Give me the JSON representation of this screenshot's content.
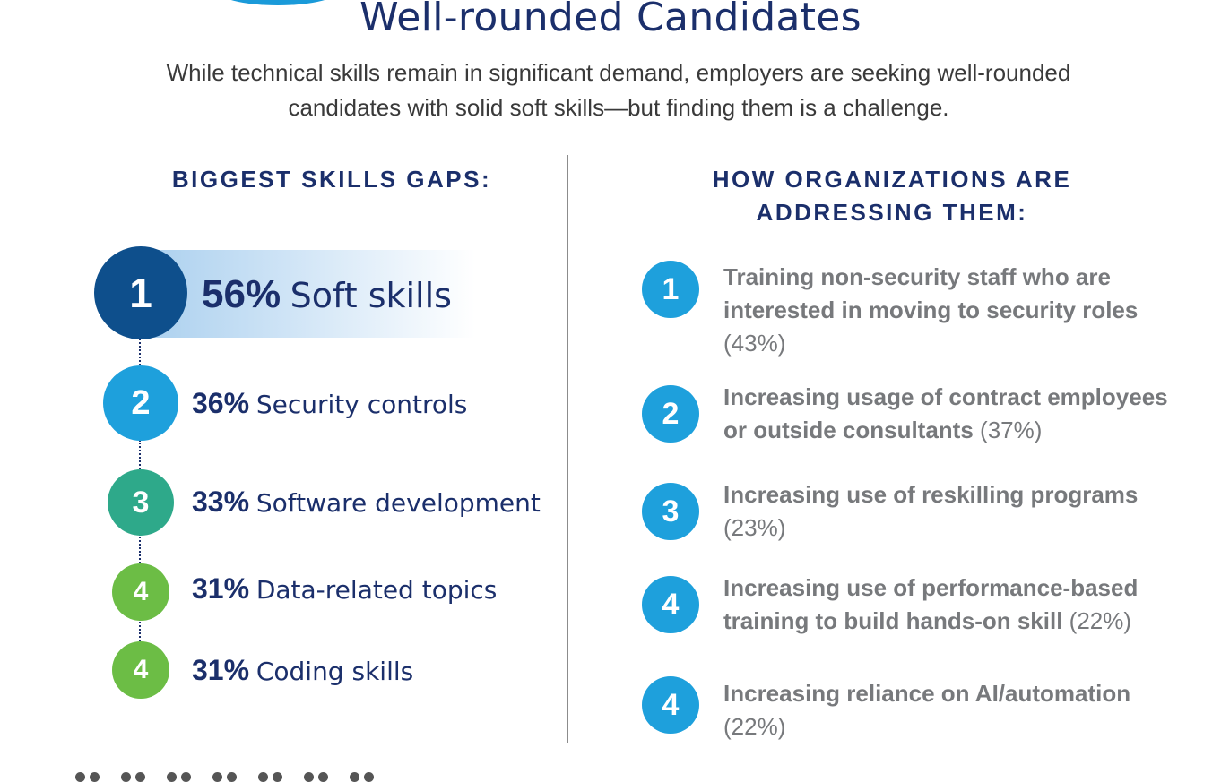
{
  "title": "Well-rounded Candidates",
  "subtitle_line1": "While technical skills remain in significant demand, employers are seeking well-rounded",
  "subtitle_line2": "candidates with solid soft skills—but finding them is a challenge.",
  "left_heading": "BIGGEST SKILLS GAPS:",
  "right_heading_line1": "HOW ORGANIZATIONS ARE",
  "right_heading_line2": "ADDRESSING THEM:",
  "skills_gaps": [
    {
      "rank": "1",
      "percent": "56%",
      "label": "Soft skills",
      "color": "#0e4f8c"
    },
    {
      "rank": "2",
      "percent": "36%",
      "label": "Security controls",
      "color": "#1ea0dc"
    },
    {
      "rank": "3",
      "percent": "33%",
      "label": "Software development",
      "color": "#2ea98a"
    },
    {
      "rank": "4",
      "percent": "31%",
      "label": "Data-related topics",
      "color": "#6cbd45"
    },
    {
      "rank": "4",
      "percent": "31%",
      "label": "Coding skills",
      "color": "#6cbd45"
    }
  ],
  "approaches": [
    {
      "rank": "1",
      "text_line1": "Training non-security staff who are",
      "text_line2": "interested in moving to security roles",
      "percent": "(43%)"
    },
    {
      "rank": "2",
      "text_line1": "Increasing usage of contract employees",
      "text_line2": "or outside consultants",
      "percent": "(37%)"
    },
    {
      "rank": "3",
      "text_line1": "Increasing use of reskilling programs",
      "percent": "(23%)"
    },
    {
      "rank": "4",
      "text_line1": "Increasing use of performance-based",
      "text_line2": "training to build hands-on skill",
      "percent": "(22%)"
    },
    {
      "rank": "4",
      "text_line1": "Increasing reliance on AI/automation",
      "percent": "(22%)"
    }
  ],
  "colors": {
    "navy": "#1b2f6b",
    "gray_text": "#77797c",
    "accent_blue": "#1ea0dc"
  }
}
